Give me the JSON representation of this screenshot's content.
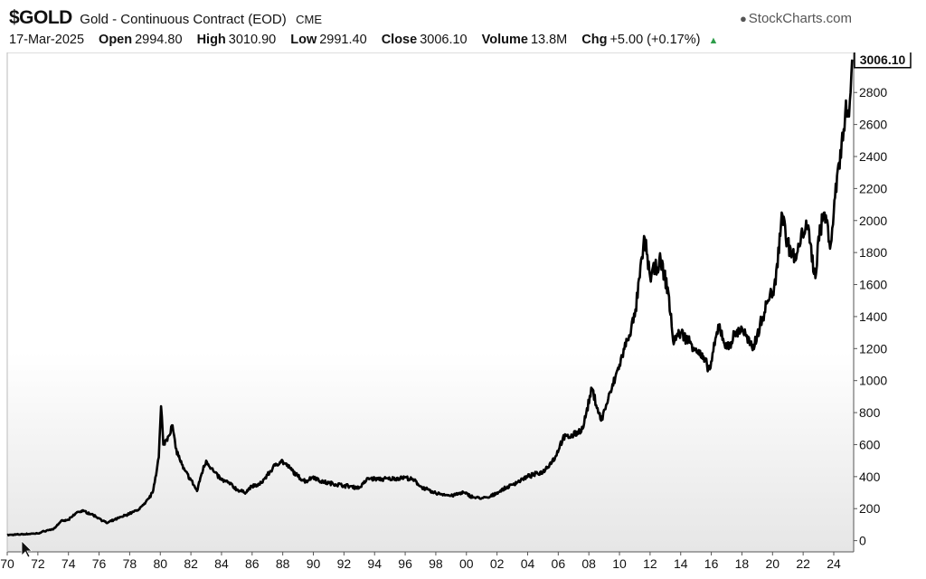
{
  "header": {
    "symbol": "$GOLD",
    "description": "Gold - Continuous Contract (EOD)",
    "exchange": "CME",
    "brand": "StockCharts.com",
    "brand_icon": "stockcharts-logo-icon",
    "date": "17-Mar-2025",
    "open_label": "Open",
    "open": "2994.80",
    "high_label": "High",
    "high": "3010.90",
    "low_label": "Low",
    "low": "2991.40",
    "close_label": "Close",
    "close": "3006.10",
    "volume_label": "Volume",
    "volume": "13.8M",
    "chg_label": "Chg",
    "chg": "+5.00 (+0.17%)",
    "chg_icon": "up-triangle-icon"
  },
  "colors": {
    "line": "#000000",
    "axis": "#555555",
    "change_up": "#2e9d4a"
  },
  "chart_data": {
    "type": "line",
    "title": "$GOLD Gold - Continuous Contract (EOD) CME",
    "xlabel": "",
    "ylabel": "",
    "xlim": [
      1970,
      2025.3
    ],
    "ylim": [
      -70,
      3050
    ],
    "yticks": [
      0,
      200,
      400,
      600,
      800,
      1000,
      1200,
      1400,
      1600,
      1800,
      2000,
      2200,
      2400,
      2600,
      2800
    ],
    "xticks": [
      {
        "v": 1970,
        "label": "70"
      },
      {
        "v": 1972,
        "label": "72"
      },
      {
        "v": 1974,
        "label": "74"
      },
      {
        "v": 1976,
        "label": "76"
      },
      {
        "v": 1978,
        "label": "78"
      },
      {
        "v": 1980,
        "label": "80"
      },
      {
        "v": 1982,
        "label": "82"
      },
      {
        "v": 1984,
        "label": "84"
      },
      {
        "v": 1986,
        "label": "86"
      },
      {
        "v": 1988,
        "label": "88"
      },
      {
        "v": 1990,
        "label": "90"
      },
      {
        "v": 1992,
        "label": "92"
      },
      {
        "v": 1994,
        "label": "94"
      },
      {
        "v": 1996,
        "label": "96"
      },
      {
        "v": 1998,
        "label": "98"
      },
      {
        "v": 2000,
        "label": "00"
      },
      {
        "v": 2002,
        "label": "02"
      },
      {
        "v": 2004,
        "label": "04"
      },
      {
        "v": 2006,
        "label": "06"
      },
      {
        "v": 2008,
        "label": "08"
      },
      {
        "v": 2010,
        "label": "10"
      },
      {
        "v": 2012,
        "label": "12"
      },
      {
        "v": 2014,
        "label": "14"
      },
      {
        "v": 2016,
        "label": "16"
      },
      {
        "v": 2018,
        "label": "18"
      },
      {
        "v": 2020,
        "label": "20"
      },
      {
        "v": 2022,
        "label": "22"
      },
      {
        "v": 2024,
        "label": "24"
      }
    ],
    "last_value_label": "3006.10",
    "grid": false,
    "series": [
      {
        "values": [
          [
            1970.0,
            35
          ],
          [
            1971.0,
            40
          ],
          [
            1972.0,
            45
          ],
          [
            1972.6,
            65
          ],
          [
            1973.0,
            70
          ],
          [
            1973.5,
            120
          ],
          [
            1974.0,
            130
          ],
          [
            1974.6,
            180
          ],
          [
            1975.0,
            185
          ],
          [
            1975.5,
            165
          ],
          [
            1976.0,
            140
          ],
          [
            1976.5,
            110
          ],
          [
            1977.0,
            130
          ],
          [
            1977.5,
            150
          ],
          [
            1978.0,
            170
          ],
          [
            1978.5,
            190
          ],
          [
            1979.0,
            230
          ],
          [
            1979.5,
            300
          ],
          [
            1979.9,
            520
          ],
          [
            1980.05,
            840
          ],
          [
            1980.2,
            600
          ],
          [
            1980.5,
            650
          ],
          [
            1980.8,
            720
          ],
          [
            1981.0,
            580
          ],
          [
            1981.5,
            450
          ],
          [
            1982.0,
            380
          ],
          [
            1982.4,
            310
          ],
          [
            1982.7,
            420
          ],
          [
            1983.0,
            500
          ],
          [
            1983.5,
            430
          ],
          [
            1984.0,
            380
          ],
          [
            1984.5,
            360
          ],
          [
            1985.0,
            320
          ],
          [
            1985.5,
            300
          ],
          [
            1986.0,
            340
          ],
          [
            1986.5,
            350
          ],
          [
            1987.0,
            410
          ],
          [
            1987.5,
            470
          ],
          [
            1987.9,
            500
          ],
          [
            1988.5,
            450
          ],
          [
            1989.0,
            400
          ],
          [
            1989.5,
            370
          ],
          [
            1990.0,
            400
          ],
          [
            1990.5,
            370
          ],
          [
            1991.0,
            360
          ],
          [
            1992.0,
            345
          ],
          [
            1993.0,
            330
          ],
          [
            1993.6,
            390
          ],
          [
            1994.0,
            385
          ],
          [
            1995.0,
            385
          ],
          [
            1996.0,
            395
          ],
          [
            1996.6,
            375
          ],
          [
            1997.0,
            340
          ],
          [
            1997.8,
            300
          ],
          [
            1998.5,
            290
          ],
          [
            1999.0,
            280
          ],
          [
            1999.8,
            300
          ],
          [
            2000.5,
            270
          ],
          [
            2001.0,
            265
          ],
          [
            2001.5,
            270
          ],
          [
            2002.0,
            300
          ],
          [
            2003.0,
            350
          ],
          [
            2004.0,
            400
          ],
          [
            2005.0,
            430
          ],
          [
            2005.8,
            520
          ],
          [
            2006.3,
            640
          ],
          [
            2007.0,
            660
          ],
          [
            2007.6,
            700
          ],
          [
            2008.2,
            950
          ],
          [
            2008.8,
            750
          ],
          [
            2009.5,
            950
          ],
          [
            2010.0,
            1100
          ],
          [
            2010.5,
            1250
          ],
          [
            2011.0,
            1400
          ],
          [
            2011.65,
            1890
          ],
          [
            2012.0,
            1650
          ],
          [
            2012.7,
            1750
          ],
          [
            2013.2,
            1550
          ],
          [
            2013.5,
            1250
          ],
          [
            2014.0,
            1300
          ],
          [
            2014.5,
            1250
          ],
          [
            2015.0,
            1200
          ],
          [
            2015.9,
            1070
          ],
          [
            2016.5,
            1350
          ],
          [
            2017.0,
            1200
          ],
          [
            2017.5,
            1280
          ],
          [
            2018.0,
            1330
          ],
          [
            2018.7,
            1190
          ],
          [
            2019.0,
            1290
          ],
          [
            2019.7,
            1500
          ],
          [
            2020.2,
            1600
          ],
          [
            2020.6,
            2050
          ],
          [
            2021.0,
            1850
          ],
          [
            2021.5,
            1750
          ],
          [
            2022.2,
            2000
          ],
          [
            2022.8,
            1640
          ],
          [
            2023.0,
            1900
          ],
          [
            2023.4,
            2050
          ],
          [
            2023.8,
            1850
          ],
          [
            2024.0,
            2050
          ],
          [
            2024.3,
            2350
          ],
          [
            2024.6,
            2500
          ],
          [
            2024.8,
            2750
          ],
          [
            2025.0,
            2650
          ],
          [
            2025.2,
            3006
          ]
        ]
      }
    ]
  }
}
